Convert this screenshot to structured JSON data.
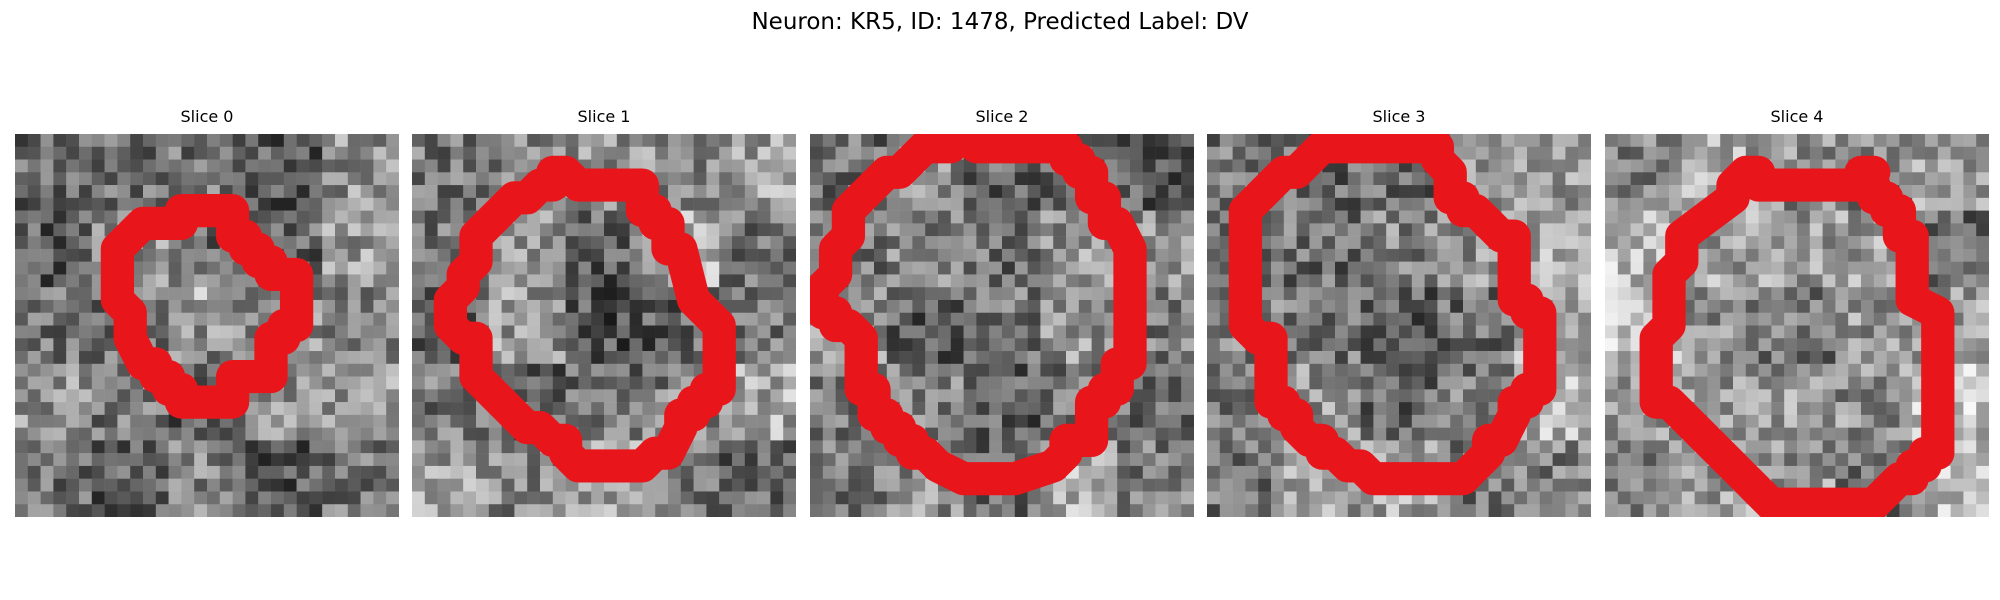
{
  "suptitle": "Neuron: KR5, ID: 1478, Predicted Label: DV",
  "contour_color": "#e8161b",
  "panels": [
    {
      "title": "Slice 0"
    },
    {
      "title": "Slice 1"
    },
    {
      "title": "Slice 2"
    },
    {
      "title": "Slice 3"
    },
    {
      "title": "Slice 4"
    }
  ]
}
